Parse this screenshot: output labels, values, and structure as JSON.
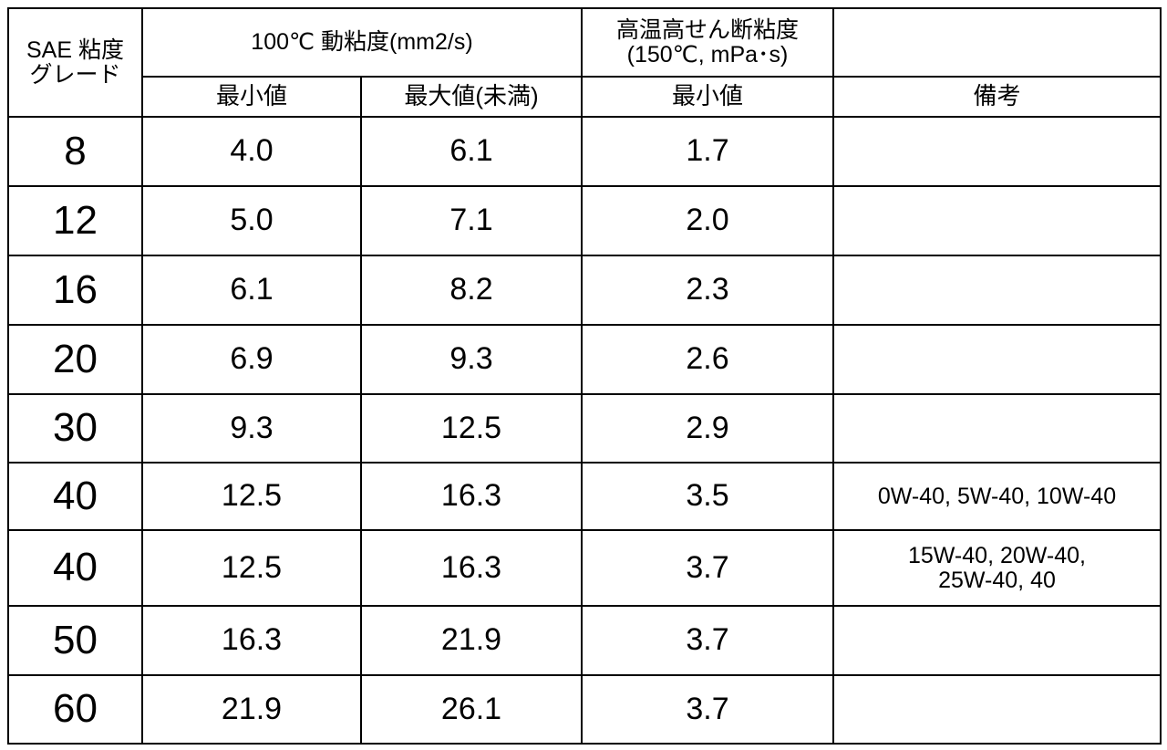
{
  "table": {
    "header": {
      "grade": [
        "SAE 粘度",
        "グレード"
      ],
      "kinematic": "100℃ 動粘度(mm2/s)",
      "kinematic_min": "最小値",
      "kinematic_max": "最大値(未満)",
      "hths": [
        "高温高せん断粘度",
        "(150℃, mPa･s)"
      ],
      "hths_min": "最小値",
      "notes": "備考"
    },
    "rows": [
      [
        "8",
        "4.0",
        "6.1",
        "1.7"
      ],
      [
        "12",
        "5.0",
        "7.1",
        "2.0"
      ],
      [
        "16",
        "6.1",
        "8.2",
        "2.3"
      ],
      [
        "20",
        "6.9",
        "9.3",
        "2.6"
      ],
      [
        "30",
        "9.3",
        "12.5",
        "2.9"
      ],
      [
        "40",
        "12.5",
        "16.3",
        "3.5",
        [
          "0W-40, 5W-40, 10W-40"
        ]
      ],
      [
        "40",
        "12.5",
        "16.3",
        "3.7",
        [
          "15W-40, 20W-40,",
          "25W-40, 40"
        ]
      ],
      [
        "50",
        "16.3",
        "21.9",
        "3.7"
      ],
      [
        "60",
        "21.9",
        "26.1",
        "3.7"
      ]
    ]
  }
}
